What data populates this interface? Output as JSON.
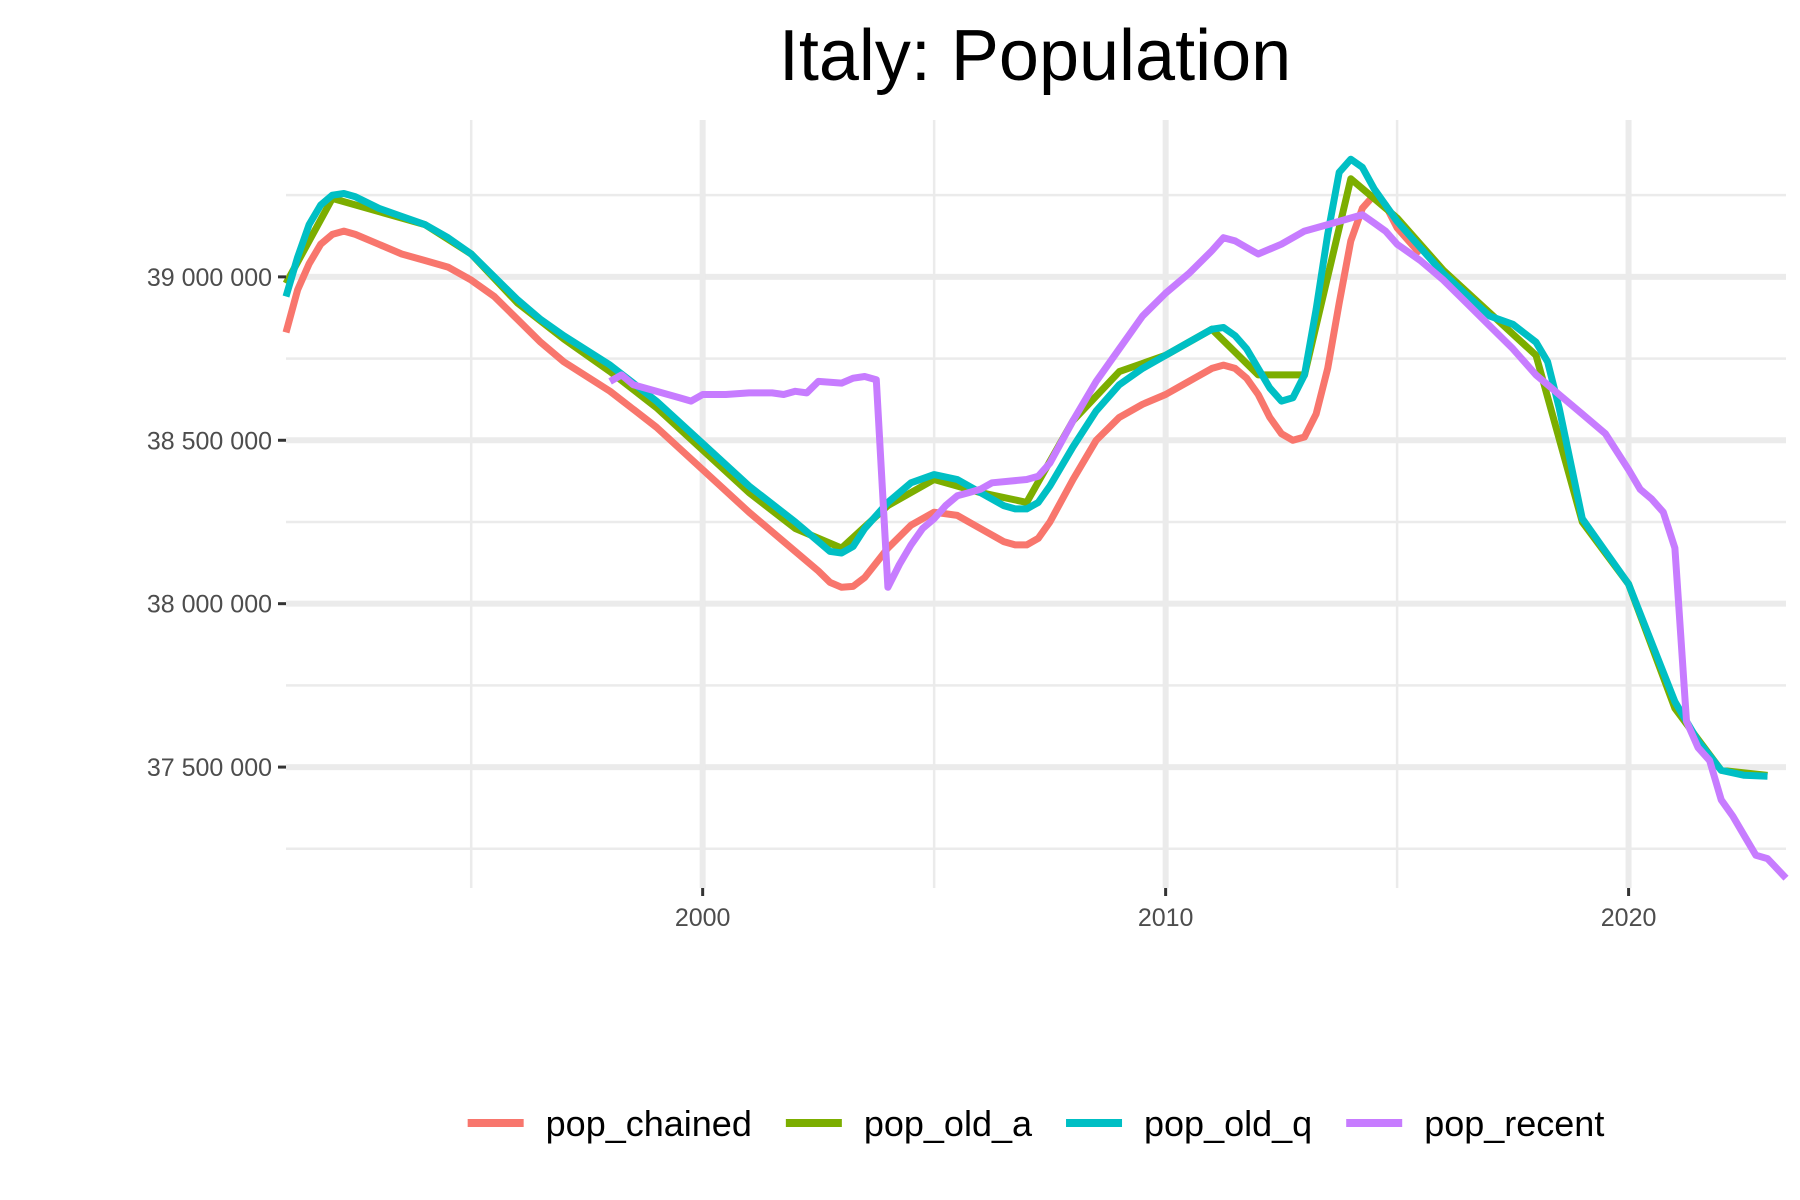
{
  "chart_data": {
    "type": "line",
    "title": "Italy: Population",
    "xlabel": "",
    "ylabel": "",
    "xlim": [
      1991,
      2023.4
    ],
    "ylim": [
      37130000,
      39480000
    ],
    "x_major_ticks": [
      2000,
      2010,
      2020
    ],
    "x_minor_ticks": [
      1995,
      2005,
      2015
    ],
    "y_major_ticks": [
      37500000,
      38000000,
      38500000,
      39000000
    ],
    "y_minor_ticks": [
      37250000,
      37750000,
      38250000,
      38750000,
      39250000
    ],
    "x_tick_labels": [
      "2000",
      "2010",
      "2020"
    ],
    "y_tick_labels": [
      "37 500 000",
      "38 000 000",
      "38 500 000",
      "39 000 000"
    ],
    "grid": true,
    "legend_position": "bottom",
    "series": [
      {
        "name": "pop_chained",
        "color": "#F8766D",
        "points": [
          [
            1991.0,
            38830000
          ],
          [
            1991.25,
            38960000
          ],
          [
            1991.5,
            39040000
          ],
          [
            1991.75,
            39100000
          ],
          [
            1992.0,
            39130000
          ],
          [
            1992.25,
            39140000
          ],
          [
            1992.5,
            39130000
          ],
          [
            1993.0,
            39100000
          ],
          [
            1993.5,
            39070000
          ],
          [
            1994.0,
            39050000
          ],
          [
            1994.5,
            39030000
          ],
          [
            1995.0,
            38990000
          ],
          [
            1995.5,
            38940000
          ],
          [
            1996.0,
            38870000
          ],
          [
            1996.5,
            38800000
          ],
          [
            1997.0,
            38740000
          ],
          [
            1998.0,
            38650000
          ],
          [
            1999.0,
            38540000
          ],
          [
            2000.0,
            38410000
          ],
          [
            2001.0,
            38280000
          ],
          [
            2002.0,
            38160000
          ],
          [
            2002.5,
            38100000
          ],
          [
            2002.75,
            38065000
          ],
          [
            2003.0,
            38050000
          ],
          [
            2003.25,
            38053000
          ],
          [
            2003.5,
            38080000
          ],
          [
            2004.0,
            38170000
          ],
          [
            2004.5,
            38240000
          ],
          [
            2005.0,
            38280000
          ],
          [
            2005.5,
            38270000
          ],
          [
            2006.0,
            38230000
          ],
          [
            2006.5,
            38190000
          ],
          [
            2006.75,
            38180000
          ],
          [
            2007.0,
            38180000
          ],
          [
            2007.25,
            38200000
          ],
          [
            2007.5,
            38250000
          ],
          [
            2008.0,
            38380000
          ],
          [
            2008.5,
            38500000
          ],
          [
            2009.0,
            38570000
          ],
          [
            2009.5,
            38610000
          ],
          [
            2010.0,
            38640000
          ],
          [
            2010.5,
            38680000
          ],
          [
            2011.0,
            38720000
          ],
          [
            2011.25,
            38730000
          ],
          [
            2011.5,
            38720000
          ],
          [
            2011.75,
            38690000
          ],
          [
            2012.0,
            38640000
          ],
          [
            2012.25,
            38570000
          ],
          [
            2012.5,
            38520000
          ],
          [
            2012.75,
            38500000
          ],
          [
            2013.0,
            38510000
          ],
          [
            2013.25,
            38580000
          ],
          [
            2013.5,
            38720000
          ],
          [
            2013.75,
            38920000
          ],
          [
            2014.0,
            39110000
          ],
          [
            2014.25,
            39210000
          ],
          [
            2014.5,
            39250000
          ],
          [
            2014.75,
            39220000
          ],
          [
            2015.0,
            39150000
          ],
          [
            2015.5,
            39070000
          ]
        ]
      },
      {
        "name": "pop_old_a",
        "color": "#7CAE00",
        "points": [
          [
            1991.0,
            38980000
          ],
          [
            1992.0,
            39240000
          ],
          [
            1993.0,
            39200000
          ],
          [
            1994.0,
            39160000
          ],
          [
            1995.0,
            39070000
          ],
          [
            1996.0,
            38920000
          ],
          [
            1997.0,
            38810000
          ],
          [
            1998.0,
            38710000
          ],
          [
            1999.0,
            38600000
          ],
          [
            2000.0,
            38470000
          ],
          [
            2001.0,
            38340000
          ],
          [
            2002.0,
            38230000
          ],
          [
            2003.0,
            38170000
          ],
          [
            2004.0,
            38300000
          ],
          [
            2005.0,
            38380000
          ],
          [
            2006.0,
            38340000
          ],
          [
            2007.0,
            38310000
          ],
          [
            2008.0,
            38560000
          ],
          [
            2009.0,
            38710000
          ],
          [
            2010.0,
            38760000
          ],
          [
            2011.0,
            38840000
          ],
          [
            2012.0,
            38700000
          ],
          [
            2013.0,
            38700000
          ],
          [
            2014.0,
            39300000
          ],
          [
            2015.0,
            39180000
          ],
          [
            2016.0,
            39020000
          ],
          [
            2017.0,
            38890000
          ],
          [
            2018.0,
            38760000
          ],
          [
            2019.0,
            38250000
          ],
          [
            2020.0,
            38060000
          ],
          [
            2021.0,
            37680000
          ],
          [
            2022.0,
            37490000
          ],
          [
            2023.0,
            37475000
          ]
        ]
      },
      {
        "name": "pop_old_q",
        "color": "#00BFC4",
        "points": [
          [
            1991.0,
            38940000
          ],
          [
            1991.25,
            39060000
          ],
          [
            1991.5,
            39160000
          ],
          [
            1991.75,
            39220000
          ],
          [
            1992.0,
            39250000
          ],
          [
            1992.25,
            39255000
          ],
          [
            1992.5,
            39245000
          ],
          [
            1993.0,
            39210000
          ],
          [
            1993.5,
            39185000
          ],
          [
            1994.0,
            39160000
          ],
          [
            1994.5,
            39120000
          ],
          [
            1995.0,
            39070000
          ],
          [
            1995.5,
            39000000
          ],
          [
            1996.0,
            38930000
          ],
          [
            1996.5,
            38870000
          ],
          [
            1997.0,
            38820000
          ],
          [
            1998.0,
            38730000
          ],
          [
            1999.0,
            38620000
          ],
          [
            2000.0,
            38490000
          ],
          [
            2001.0,
            38360000
          ],
          [
            2002.0,
            38250000
          ],
          [
            2002.5,
            38190000
          ],
          [
            2002.75,
            38160000
          ],
          [
            2003.0,
            38155000
          ],
          [
            2003.25,
            38175000
          ],
          [
            2003.5,
            38230000
          ],
          [
            2004.0,
            38310000
          ],
          [
            2004.5,
            38370000
          ],
          [
            2005.0,
            38395000
          ],
          [
            2005.5,
            38380000
          ],
          [
            2006.0,
            38340000
          ],
          [
            2006.5,
            38300000
          ],
          [
            2006.75,
            38290000
          ],
          [
            2007.0,
            38290000
          ],
          [
            2007.25,
            38310000
          ],
          [
            2007.5,
            38360000
          ],
          [
            2008.0,
            38480000
          ],
          [
            2008.5,
            38590000
          ],
          [
            2009.0,
            38670000
          ],
          [
            2009.5,
            38720000
          ],
          [
            2010.0,
            38760000
          ],
          [
            2010.5,
            38800000
          ],
          [
            2011.0,
            38840000
          ],
          [
            2011.25,
            38845000
          ],
          [
            2011.5,
            38820000
          ],
          [
            2011.75,
            38780000
          ],
          [
            2012.0,
            38720000
          ],
          [
            2012.25,
            38660000
          ],
          [
            2012.5,
            38620000
          ],
          [
            2012.75,
            38630000
          ],
          [
            2013.0,
            38700000
          ],
          [
            2013.25,
            38900000
          ],
          [
            2013.5,
            39130000
          ],
          [
            2013.75,
            39320000
          ],
          [
            2014.0,
            39360000
          ],
          [
            2014.25,
            39335000
          ],
          [
            2014.5,
            39270000
          ],
          [
            2015.0,
            39170000
          ],
          [
            2016.0,
            39010000
          ],
          [
            2017.0,
            38880000
          ],
          [
            2017.5,
            38855000
          ],
          [
            2018.0,
            38800000
          ],
          [
            2018.25,
            38740000
          ],
          [
            2018.5,
            38600000
          ],
          [
            2019.0,
            38260000
          ],
          [
            2019.5,
            38160000
          ],
          [
            2020.0,
            38060000
          ],
          [
            2020.5,
            37880000
          ],
          [
            2021.0,
            37700000
          ],
          [
            2021.5,
            37580000
          ],
          [
            2022.0,
            37490000
          ],
          [
            2022.5,
            37475000
          ],
          [
            2023.0,
            37472000
          ]
        ]
      },
      {
        "name": "pop_recent",
        "color": "#C77CFF",
        "points": [
          [
            1998.0,
            38680000
          ],
          [
            1998.25,
            38700000
          ],
          [
            1998.5,
            38670000
          ],
          [
            1999.0,
            38650000
          ],
          [
            1999.5,
            38630000
          ],
          [
            1999.75,
            38620000
          ],
          [
            2000.0,
            38640000
          ],
          [
            2000.5,
            38640000
          ],
          [
            2001.0,
            38645000
          ],
          [
            2001.5,
            38645000
          ],
          [
            2001.75,
            38640000
          ],
          [
            2002.0,
            38650000
          ],
          [
            2002.25,
            38645000
          ],
          [
            2002.5,
            38680000
          ],
          [
            2003.0,
            38675000
          ],
          [
            2003.25,
            38690000
          ],
          [
            2003.5,
            38695000
          ],
          [
            2003.75,
            38685000
          ],
          [
            2004.0,
            38050000
          ],
          [
            2004.25,
            38120000
          ],
          [
            2004.5,
            38180000
          ],
          [
            2004.75,
            38230000
          ],
          [
            2005.0,
            38260000
          ],
          [
            2005.25,
            38300000
          ],
          [
            2005.5,
            38330000
          ],
          [
            2005.75,
            38340000
          ],
          [
            2006.0,
            38350000
          ],
          [
            2006.25,
            38370000
          ],
          [
            2007.0,
            38380000
          ],
          [
            2007.25,
            38390000
          ],
          [
            2007.5,
            38430000
          ],
          [
            2008.0,
            38560000
          ],
          [
            2008.5,
            38680000
          ],
          [
            2009.0,
            38780000
          ],
          [
            2009.5,
            38880000
          ],
          [
            2010.0,
            38950000
          ],
          [
            2010.5,
            39010000
          ],
          [
            2011.0,
            39080000
          ],
          [
            2011.25,
            39120000
          ],
          [
            2011.5,
            39110000
          ],
          [
            2011.75,
            39090000
          ],
          [
            2012.0,
            39070000
          ],
          [
            2012.5,
            39100000
          ],
          [
            2013.0,
            39140000
          ],
          [
            2013.5,
            39160000
          ],
          [
            2014.0,
            39180000
          ],
          [
            2014.25,
            39190000
          ],
          [
            2014.5,
            39165000
          ],
          [
            2014.75,
            39140000
          ],
          [
            2015.0,
            39100000
          ],
          [
            2015.5,
            39050000
          ],
          [
            2016.0,
            38990000
          ],
          [
            2016.5,
            38920000
          ],
          [
            2017.0,
            38850000
          ],
          [
            2017.5,
            38780000
          ],
          [
            2018.0,
            38700000
          ],
          [
            2018.5,
            38640000
          ],
          [
            2019.0,
            38580000
          ],
          [
            2019.5,
            38520000
          ],
          [
            2020.0,
            38410000
          ],
          [
            2020.25,
            38350000
          ],
          [
            2020.5,
            38320000
          ],
          [
            2020.75,
            38280000
          ],
          [
            2021.0,
            38170000
          ],
          [
            2021.25,
            37640000
          ],
          [
            2021.5,
            37560000
          ],
          [
            2021.75,
            37520000
          ],
          [
            2022.0,
            37400000
          ],
          [
            2022.25,
            37350000
          ],
          [
            2022.5,
            37290000
          ],
          [
            2022.75,
            37230000
          ],
          [
            2023.0,
            37220000
          ],
          [
            2023.4,
            37160000
          ]
        ]
      }
    ]
  }
}
